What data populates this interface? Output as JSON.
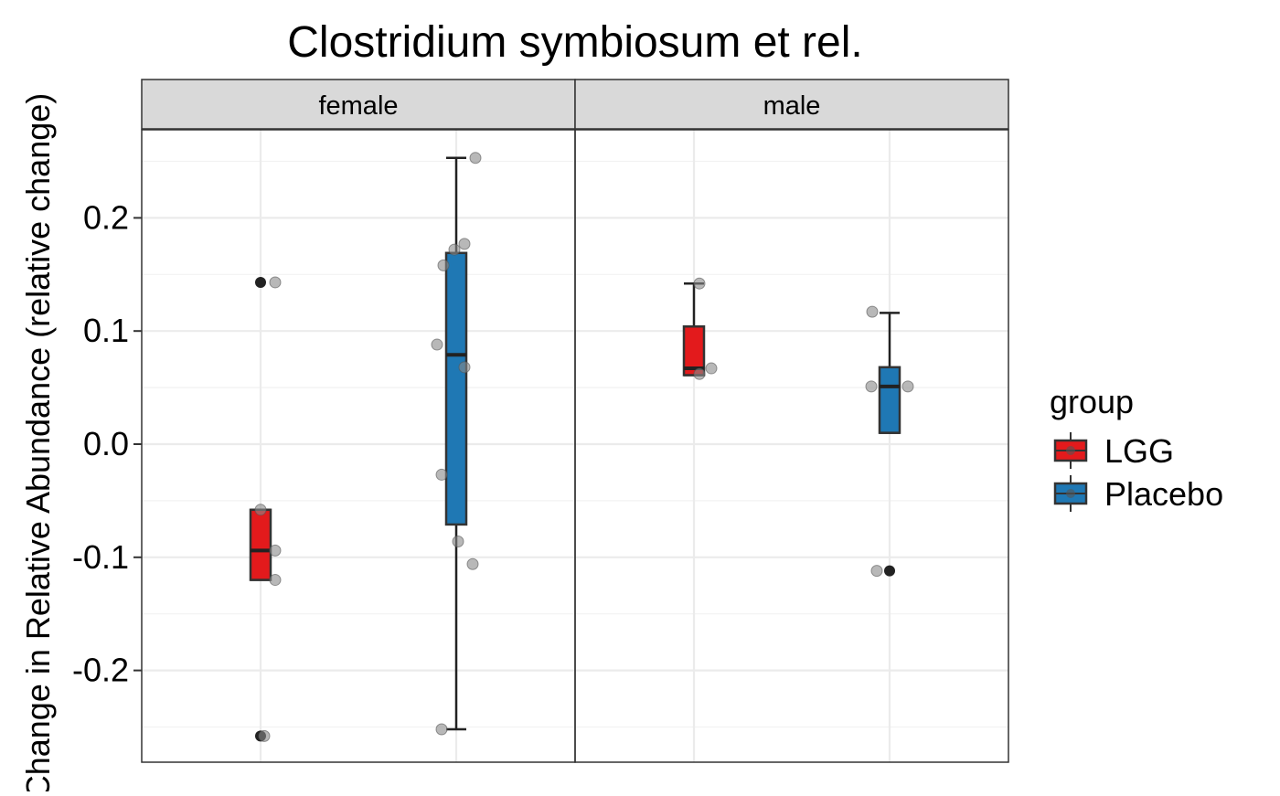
{
  "chart_data": {
    "type": "boxplot",
    "title": "Clostridium symbiosum et rel.",
    "xlabel": "",
    "ylabel": "Change in Relative Abundance (relative change)",
    "ylim": [
      -0.28,
      0.28
    ],
    "yticks": [
      -0.2,
      -0.1,
      0.0,
      0.1,
      0.2
    ],
    "ytick_labels": [
      "-0.2",
      "-0.1",
      "0.0",
      "0.1",
      "0.2"
    ],
    "grid": true,
    "facets": [
      "female",
      "male"
    ],
    "groups": [
      "LGG",
      "Placebo"
    ],
    "legend": {
      "title": "group",
      "position": "right",
      "items": [
        {
          "label": "LGG",
          "color": "#e31a1c"
        },
        {
          "label": "Placebo",
          "color": "#1f78b4"
        }
      ]
    },
    "boxes": [
      {
        "facet": "female",
        "group": "LGG",
        "q1": -0.12,
        "median": -0.094,
        "q3": -0.058,
        "whisker_low": -0.12,
        "whisker_high": -0.058,
        "outliers": [
          0.143,
          -0.258
        ]
      },
      {
        "facet": "female",
        "group": "Placebo",
        "q1": -0.071,
        "median": 0.079,
        "q3": 0.169,
        "whisker_low": -0.252,
        "whisker_high": 0.253,
        "outliers": []
      },
      {
        "facet": "male",
        "group": "LGG",
        "q1": 0.061,
        "median": 0.067,
        "q3": 0.104,
        "whisker_low": 0.061,
        "whisker_high": 0.142,
        "outliers": []
      },
      {
        "facet": "male",
        "group": "Placebo",
        "q1": 0.01,
        "median": 0.051,
        "q3": 0.068,
        "whisker_low": 0.01,
        "whisker_high": 0.116,
        "outliers": [
          -0.112
        ]
      }
    ],
    "points": [
      {
        "facet": "female",
        "group": "LGG",
        "values": [
          0.143,
          -0.058,
          -0.094,
          -0.12,
          -0.258
        ],
        "jitter": [
          16,
          0,
          16,
          16,
          4
        ]
      },
      {
        "facet": "female",
        "group": "Placebo",
        "values": [
          0.253,
          0.177,
          0.172,
          0.158,
          0.088,
          0.068,
          -0.027,
          -0.086,
          -0.106,
          -0.252
        ],
        "jitter": [
          21,
          9,
          -2,
          -14,
          -21,
          9,
          -16,
          2,
          18,
          -16
        ]
      },
      {
        "facet": "male",
        "group": "LGG",
        "values": [
          0.142,
          0.067,
          0.062
        ],
        "jitter": [
          6,
          19,
          6
        ]
      },
      {
        "facet": "male",
        "group": "Placebo",
        "values": [
          0.117,
          0.051,
          0.051,
          -0.112
        ],
        "jitter": [
          -19,
          -20,
          20,
          -14
        ]
      }
    ]
  }
}
